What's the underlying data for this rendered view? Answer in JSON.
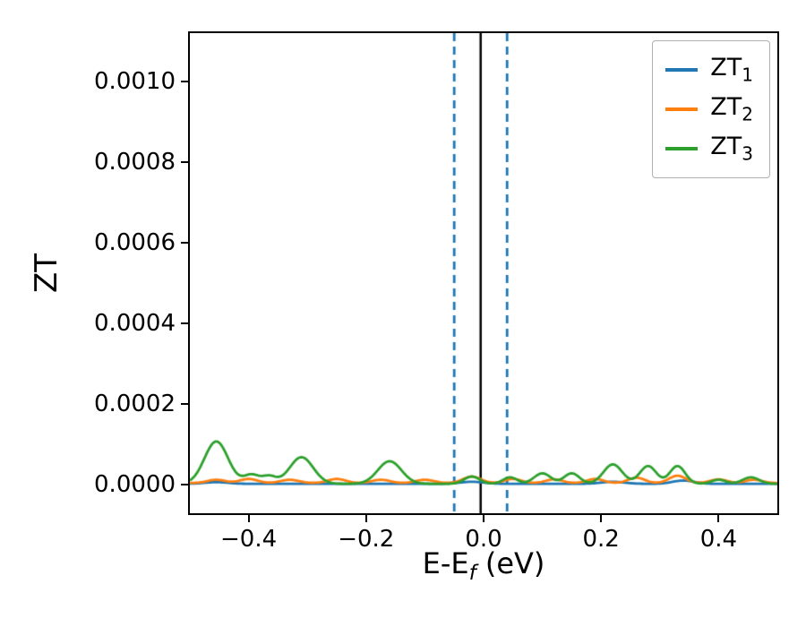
{
  "chart_data": {
    "type": "line",
    "title": "",
    "ylabel": "ZT",
    "xlabel": {
      "pre": "E-E",
      "sub": "f",
      "post": " (eV)"
    },
    "xlim": [
      -0.5,
      0.5
    ],
    "ylim": [
      -7e-05,
      0.00112
    ],
    "grid": false,
    "legend_position": "upper right",
    "xticks": {
      "values": [
        -0.4,
        -0.2,
        0.0,
        0.2,
        0.4
      ],
      "labels": [
        "−0.4",
        "−0.2",
        "0.0",
        "0.2",
        "0.4"
      ]
    },
    "yticks": {
      "values": [
        0.0,
        0.0002,
        0.0004,
        0.0006,
        0.0008,
        0.001
      ],
      "labels": [
        "0.0000",
        "0.0002",
        "0.0004",
        "0.0006",
        "0.0008",
        "0.0010"
      ]
    },
    "vlines": [
      {
        "x": -0.005,
        "color": "#000000",
        "style": "solid",
        "width": 2.5
      },
      {
        "x": -0.05,
        "color": "#1f77b4",
        "style": "dashed",
        "width": 2.8
      },
      {
        "x": 0.04,
        "color": "#1f77b4",
        "style": "dashed",
        "width": 2.8
      }
    ],
    "series": [
      {
        "name": "ZT1",
        "label_base": "ZT",
        "label_sub": "1",
        "color": "#1f77b4",
        "baseline": 3e-06,
        "peaks": [
          {
            "x": -0.455,
            "h": 4e-06,
            "w": 0.02
          },
          {
            "x": -0.02,
            "h": 5e-06,
            "w": 0.02
          },
          {
            "x": 0.22,
            "h": 5e-06,
            "w": 0.02
          },
          {
            "x": 0.34,
            "h": 8e-06,
            "w": 0.018
          }
        ]
      },
      {
        "name": "ZT2",
        "label_base": "ZT",
        "label_sub": "2",
        "color": "#ff7f0e",
        "baseline": 5e-06,
        "peaks": [
          {
            "x": -0.455,
            "h": 8e-06,
            "w": 0.015
          },
          {
            "x": -0.4,
            "h": 1e-05,
            "w": 0.015
          },
          {
            "x": -0.33,
            "h": 8e-06,
            "w": 0.015
          },
          {
            "x": -0.25,
            "h": 1e-05,
            "w": 0.015
          },
          {
            "x": -0.175,
            "h": 8e-06,
            "w": 0.015
          },
          {
            "x": -0.1,
            "h": 8e-06,
            "w": 0.015
          },
          {
            "x": -0.02,
            "h": 1.6e-05,
            "w": 0.015
          },
          {
            "x": 0.05,
            "h": 1e-05,
            "w": 0.014
          },
          {
            "x": 0.12,
            "h": 9e-06,
            "w": 0.014
          },
          {
            "x": 0.19,
            "h": 1e-05,
            "w": 0.014
          },
          {
            "x": 0.26,
            "h": 1.3e-05,
            "w": 0.014
          },
          {
            "x": 0.33,
            "h": 1.8e-05,
            "w": 0.014
          },
          {
            "x": 0.4,
            "h": 9e-06,
            "w": 0.014
          },
          {
            "x": 0.46,
            "h": 8e-06,
            "w": 0.014
          }
        ]
      },
      {
        "name": "ZT3",
        "label_base": "ZT",
        "label_sub": "3",
        "color": "#2ca02c",
        "baseline": 3e-06,
        "peaks": [
          {
            "x": -0.455,
            "h": 0.000105,
            "w": 0.02
          },
          {
            "x": -0.395,
            "h": 2.2e-05,
            "w": 0.013
          },
          {
            "x": -0.365,
            "h": 1.8e-05,
            "w": 0.012
          },
          {
            "x": -0.31,
            "h": 6.6e-05,
            "w": 0.02
          },
          {
            "x": -0.16,
            "h": 5.6e-05,
            "w": 0.02
          },
          {
            "x": -0.02,
            "h": 1.8e-05,
            "w": 0.013
          },
          {
            "x": 0.045,
            "h": 1.6e-05,
            "w": 0.012
          },
          {
            "x": 0.1,
            "h": 2.6e-05,
            "w": 0.014
          },
          {
            "x": 0.15,
            "h": 2.6e-05,
            "w": 0.013
          },
          {
            "x": 0.22,
            "h": 4.8e-05,
            "w": 0.016
          },
          {
            "x": 0.28,
            "h": 4.4e-05,
            "w": 0.014
          },
          {
            "x": 0.33,
            "h": 4.4e-05,
            "w": 0.013
          },
          {
            "x": 0.4,
            "h": 1e-05,
            "w": 0.012
          },
          {
            "x": 0.455,
            "h": 1.6e-05,
            "w": 0.014
          }
        ]
      }
    ]
  }
}
